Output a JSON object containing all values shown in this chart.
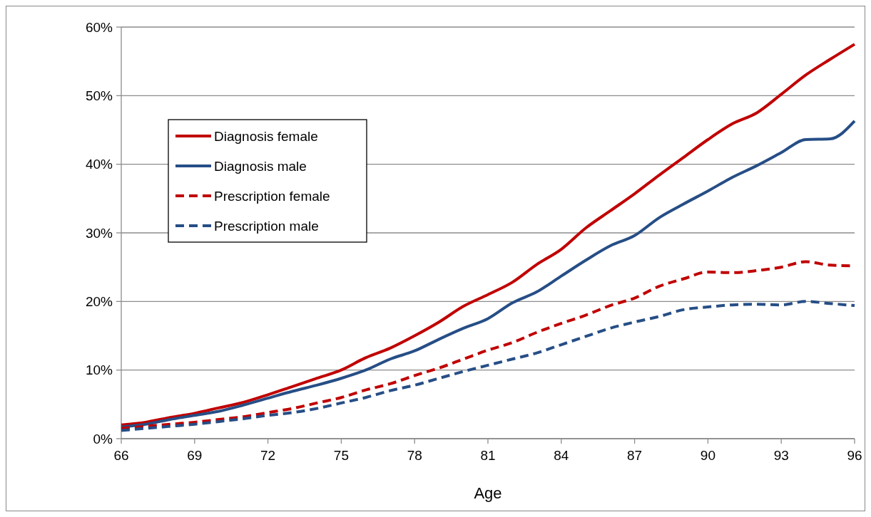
{
  "chart_data": {
    "type": "line",
    "xlabel": "Age",
    "x": [
      66,
      67,
      68,
      69,
      70,
      71,
      72,
      73,
      74,
      75,
      76,
      77,
      78,
      79,
      80,
      81,
      82,
      83,
      84,
      85,
      86,
      87,
      88,
      89,
      90,
      91,
      92,
      93,
      94,
      95,
      96
    ],
    "xlim": [
      66,
      96
    ],
    "xticks": [
      66,
      69,
      72,
      75,
      78,
      81,
      84,
      87,
      90,
      93,
      96
    ],
    "ylim": [
      0,
      60
    ],
    "yticks": [
      {
        "value": 0,
        "label": "0%"
      },
      {
        "value": 10,
        "label": "10%"
      },
      {
        "value": 20,
        "label": "20%"
      },
      {
        "value": 30,
        "label": "30%"
      },
      {
        "value": 40,
        "label": "40%"
      },
      {
        "value": 50,
        "label": "50%"
      },
      {
        "value": 60,
        "label": "60%"
      }
    ],
    "grid": "y",
    "legend": "top left",
    "marker": "none",
    "series": [
      {
        "name": "Diagnosis female",
        "color": "#c00000",
        "line_style": "solid",
        "values": [
          2.0,
          2.4,
          3.1,
          3.7,
          4.5,
          5.3,
          6.4,
          7.6,
          8.8,
          10.0,
          11.8,
          13.2,
          15.0,
          17.0,
          19.3,
          21.0,
          22.8,
          25.4,
          27.6,
          30.7,
          33.2,
          35.7,
          38.4,
          41.0,
          43.6,
          45.9,
          47.5,
          50.2,
          53.0,
          55.3,
          57.5
        ]
      },
      {
        "name": "Diagnosis male",
        "color": "#264e86",
        "line_style": "solid",
        "values": [
          1.7,
          2.1,
          2.8,
          3.4,
          4.0,
          4.9,
          5.9,
          6.9,
          7.8,
          8.8,
          10.0,
          11.6,
          12.8,
          14.5,
          16.1,
          17.5,
          19.8,
          21.4,
          23.7,
          26.0,
          28.1,
          29.6,
          32.2,
          34.2,
          36.1,
          38.1,
          39.8,
          41.7,
          43.6,
          43.7,
          46.3
        ]
      },
      {
        "name": "Prescription female",
        "color": "#c00000",
        "line_style": "dashed",
        "values": [
          1.5,
          1.8,
          2.1,
          2.4,
          2.8,
          3.2,
          3.8,
          4.4,
          5.2,
          6.0,
          7.1,
          8.0,
          9.2,
          10.3,
          11.6,
          12.9,
          14.0,
          15.5,
          16.8,
          18.0,
          19.4,
          20.5,
          22.2,
          23.3,
          24.3,
          24.2,
          24.5,
          25.0,
          25.8,
          25.3,
          25.2
        ]
      },
      {
        "name": "Prescription male",
        "color": "#264e86",
        "line_style": "dashed",
        "values": [
          1.2,
          1.5,
          1.8,
          2.1,
          2.5,
          2.9,
          3.4,
          3.8,
          4.4,
          5.2,
          6.0,
          7.0,
          7.8,
          8.8,
          9.8,
          10.7,
          11.6,
          12.5,
          13.7,
          14.9,
          16.1,
          17.0,
          17.8,
          18.8,
          19.2,
          19.5,
          19.6,
          19.5,
          20.0,
          19.7,
          19.4
        ]
      }
    ]
  }
}
